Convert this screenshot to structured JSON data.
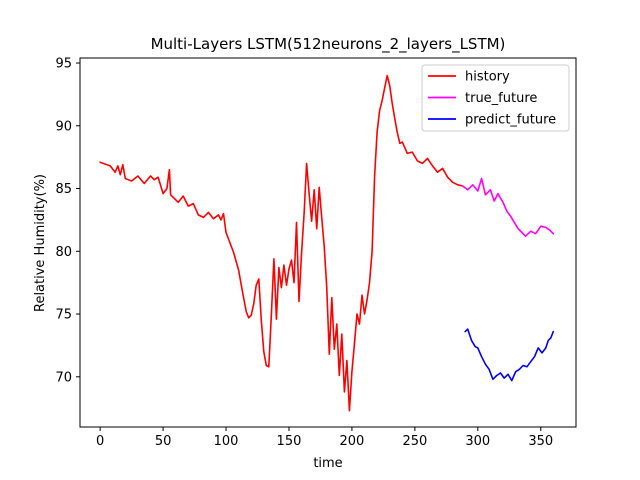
{
  "chart_data": {
    "type": "line",
    "title": "Multi-Layers LSTM(512neurons_2_layers_LSTM)",
    "xlabel": "time",
    "ylabel": "Relative Humidity(%)",
    "xlim": [
      -16,
      378
    ],
    "ylim": [
      66,
      95.4
    ],
    "xticks": [
      0,
      50,
      100,
      150,
      200,
      250,
      300,
      350
    ],
    "yticks": [
      70,
      75,
      80,
      85,
      90,
      95
    ],
    "grid": false,
    "legend_position": "top-right",
    "series": [
      {
        "name": "history",
        "color": "#ff0000",
        "x": [
          0,
          8,
          12,
          14,
          16,
          18,
          20,
          25,
          30,
          35,
          40,
          43,
          46,
          50,
          53,
          55,
          56,
          58,
          62,
          66,
          70,
          74,
          78,
          82,
          86,
          90,
          94,
          96,
          98,
          100,
          103,
          106,
          110,
          113,
          116,
          118,
          120,
          122,
          124,
          126,
          128,
          130,
          132,
          134,
          136,
          138,
          140,
          142,
          144,
          146,
          148,
          150,
          152,
          154,
          156,
          158,
          160,
          162,
          164,
          166,
          168,
          170,
          172,
          174,
          176,
          178,
          180,
          182,
          184,
          186,
          188,
          190,
          192,
          194,
          196,
          198,
          200,
          202,
          204,
          206,
          208,
          210,
          212,
          214,
          216,
          218,
          220,
          222,
          224,
          226,
          228,
          230,
          232,
          234,
          236,
          238,
          240,
          244,
          248,
          252,
          256,
          260,
          264,
          268,
          272,
          276,
          280,
          284,
          288
        ],
        "y": [
          87.1,
          86.8,
          86.3,
          86.8,
          86.1,
          86.9,
          85.8,
          85.6,
          86.0,
          85.4,
          86.0,
          85.7,
          85.9,
          84.6,
          85.0,
          86.5,
          84.5,
          84.3,
          83.9,
          84.4,
          83.6,
          83.8,
          82.9,
          82.7,
          83.1,
          82.6,
          82.9,
          82.5,
          83.0,
          81.5,
          80.7,
          79.9,
          78.5,
          76.8,
          75.2,
          74.7,
          74.9,
          75.8,
          77.3,
          77.8,
          74.5,
          72.0,
          70.9,
          70.8,
          75.0,
          79.4,
          74.6,
          78.7,
          77.1,
          78.9,
          77.3,
          78.6,
          79.3,
          77.5,
          82.3,
          76.0,
          79.9,
          83.0,
          87.0,
          84.6,
          82.4,
          84.9,
          81.8,
          85.1,
          82.7,
          80.4,
          77.2,
          71.8,
          76.3,
          72.2,
          74.2,
          70.1,
          73.4,
          68.8,
          71.3,
          67.3,
          70.4,
          72.6,
          75.0,
          74.2,
          76.5,
          75.0,
          76.1,
          77.5,
          80.0,
          86.0,
          89.5,
          91.2,
          92.0,
          93.0,
          94.0,
          93.2,
          91.8,
          90.6,
          89.5,
          88.6,
          88.7,
          87.8,
          87.9,
          87.2,
          87.0,
          87.4,
          86.8,
          86.3,
          86.6,
          85.9,
          85.5,
          85.3,
          85.2
        ]
      },
      {
        "name": "true_future",
        "color": "#ff00ff",
        "x": [
          288,
          292,
          296,
          300,
          303,
          306,
          310,
          313,
          316,
          320,
          323,
          326,
          329,
          332,
          335,
          338,
          342,
          346,
          350,
          354,
          357,
          360
        ],
        "y": [
          85.2,
          84.9,
          85.3,
          84.8,
          85.8,
          84.5,
          84.9,
          84.0,
          84.6,
          83.9,
          83.2,
          82.8,
          82.3,
          81.8,
          81.5,
          81.2,
          81.6,
          81.4,
          82.0,
          81.9,
          81.7,
          81.4
        ]
      },
      {
        "name": "predict_future",
        "color": "#0000ff",
        "x": [
          290,
          292,
          295,
          298,
          300,
          303,
          306,
          309,
          312,
          315,
          318,
          321,
          324,
          327,
          330,
          333,
          336,
          339,
          342,
          345,
          348,
          351,
          354,
          356,
          358,
          360
        ],
        "y": [
          73.6,
          73.8,
          72.9,
          72.4,
          72.3,
          71.6,
          71.0,
          70.6,
          69.8,
          70.1,
          70.3,
          69.9,
          70.2,
          69.7,
          70.4,
          70.6,
          70.9,
          70.8,
          71.2,
          71.6,
          72.3,
          71.9,
          72.3,
          72.9,
          73.1,
          73.6
        ]
      }
    ]
  }
}
